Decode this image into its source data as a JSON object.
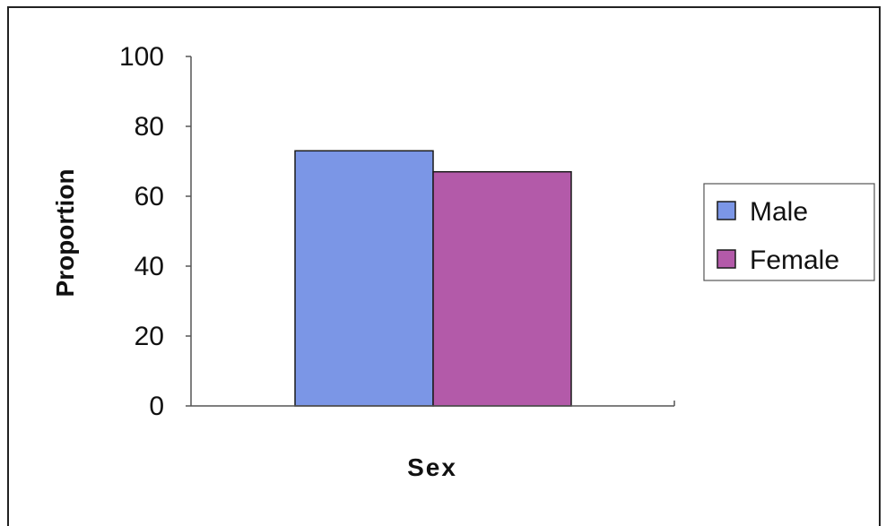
{
  "chart_data": {
    "type": "bar",
    "categories": [
      ""
    ],
    "series": [
      {
        "name": "Male",
        "values": [
          73
        ],
        "color": "#7b96e6"
      },
      {
        "name": "Female",
        "values": [
          67
        ],
        "color": "#b35aa9"
      }
    ],
    "title": "",
    "xlabel": "Sex",
    "ylabel": "Proportion",
    "ylim": [
      0,
      100
    ],
    "yticks": [
      0,
      20,
      40,
      60,
      80,
      100
    ],
    "grid": false,
    "legend_position": "right"
  }
}
